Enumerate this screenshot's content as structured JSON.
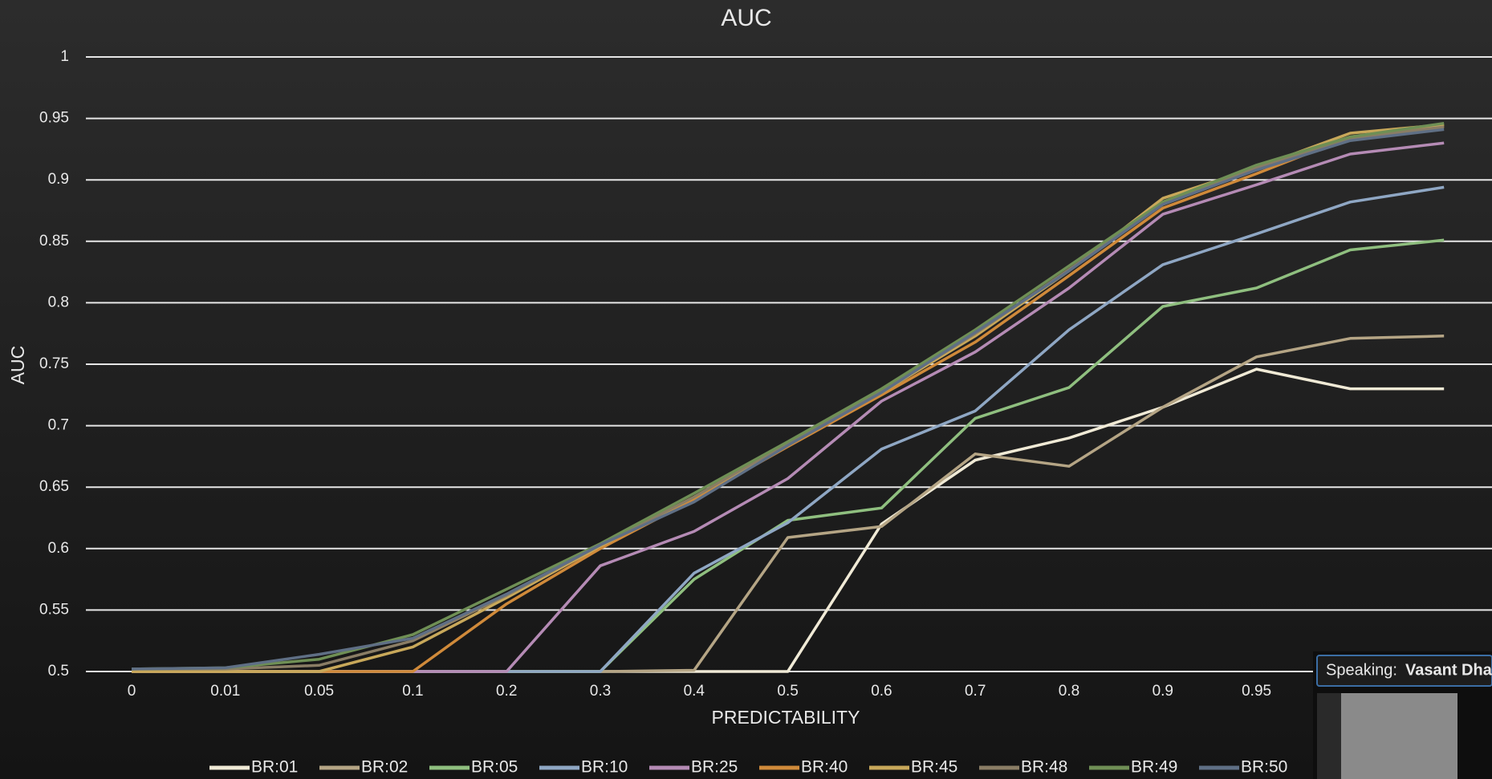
{
  "chart_data": {
    "type": "line",
    "title": "AUC",
    "x_label": "PREDICTABILITY",
    "y_label": "AUC",
    "categories": [
      "0",
      "0.01",
      "0.05",
      "0.1",
      "0.2",
      "0.3",
      "0.4",
      "0.5",
      "0.6",
      "0.7",
      "0.8",
      "0.9",
      "0.95",
      null,
      null
    ],
    "ylim": [
      0.5,
      1
    ],
    "yticks": [
      0.5,
      0.55,
      0.6,
      0.65,
      0.7,
      0.75,
      0.8,
      0.85,
      0.9,
      0.95,
      1
    ],
    "grid": true,
    "legend": "bottom",
    "series": [
      {
        "name": "BR:01",
        "color": "#f0ead6",
        "values": [
          0.5,
          0.5,
          0.5,
          0.5,
          0.5,
          0.5,
          0.5,
          0.5,
          0.62,
          0.672,
          0.69,
          0.715,
          0.746,
          0.73,
          0.73
        ]
      },
      {
        "name": "BR:02",
        "color": "#b5a585",
        "values": [
          0.5,
          0.5,
          0.5,
          0.5,
          0.5,
          0.5,
          0.501,
          0.609,
          0.618,
          0.677,
          0.667,
          0.715,
          0.756,
          0.771,
          0.773
        ]
      },
      {
        "name": "BR:05",
        "color": "#8fbf7f",
        "values": [
          0.5,
          0.5,
          0.5,
          0.5,
          0.5,
          0.5,
          0.575,
          0.623,
          0.633,
          0.706,
          0.731,
          0.797,
          0.812,
          0.843,
          0.851
        ]
      },
      {
        "name": "BR:10",
        "color": "#8fa7c4",
        "values": [
          0.5,
          0.5,
          0.5,
          0.5,
          0.5,
          0.5,
          0.58,
          0.621,
          0.681,
          0.712,
          0.778,
          0.831,
          0.856,
          0.882,
          0.894
        ]
      },
      {
        "name": "BR:25",
        "color": "#b58bb5",
        "values": [
          0.5,
          0.5,
          0.5,
          0.5,
          0.5,
          0.586,
          0.614,
          0.657,
          0.72,
          0.76,
          0.812,
          0.872,
          0.896,
          0.921,
          0.93
        ]
      },
      {
        "name": "BR:40",
        "color": "#d08a3a",
        "values": [
          0.5,
          0.5,
          0.5,
          0.5,
          0.555,
          0.6,
          0.64,
          0.683,
          0.725,
          0.768,
          0.822,
          0.877,
          0.905,
          0.935,
          0.944
        ]
      },
      {
        "name": "BR:45",
        "color": "#c8a85a",
        "values": [
          0.5,
          0.5,
          0.5,
          0.52,
          0.56,
          0.602,
          0.642,
          0.685,
          0.727,
          0.773,
          0.826,
          0.885,
          0.91,
          0.938,
          0.945
        ]
      },
      {
        "name": "BR:48",
        "color": "#8a7d65",
        "values": [
          0.502,
          0.502,
          0.505,
          0.525,
          0.562,
          0.603,
          0.642,
          0.686,
          0.728,
          0.775,
          0.827,
          0.88,
          0.91,
          0.934,
          0.943
        ]
      },
      {
        "name": "BR:49",
        "color": "#6f8f55",
        "values": [
          0.502,
          0.503,
          0.51,
          0.53,
          0.567,
          0.604,
          0.645,
          0.687,
          0.73,
          0.778,
          0.83,
          0.882,
          0.912,
          0.935,
          0.946
        ]
      },
      {
        "name": "BR:50",
        "color": "#5f6f85",
        "values": [
          0.502,
          0.503,
          0.514,
          0.527,
          0.563,
          0.603,
          0.638,
          0.684,
          0.727,
          0.776,
          0.826,
          0.88,
          0.908,
          0.932,
          0.941
        ]
      }
    ]
  },
  "overlay": {
    "speaking_label": "Speaking:",
    "speaker": "Vasant Dha"
  }
}
